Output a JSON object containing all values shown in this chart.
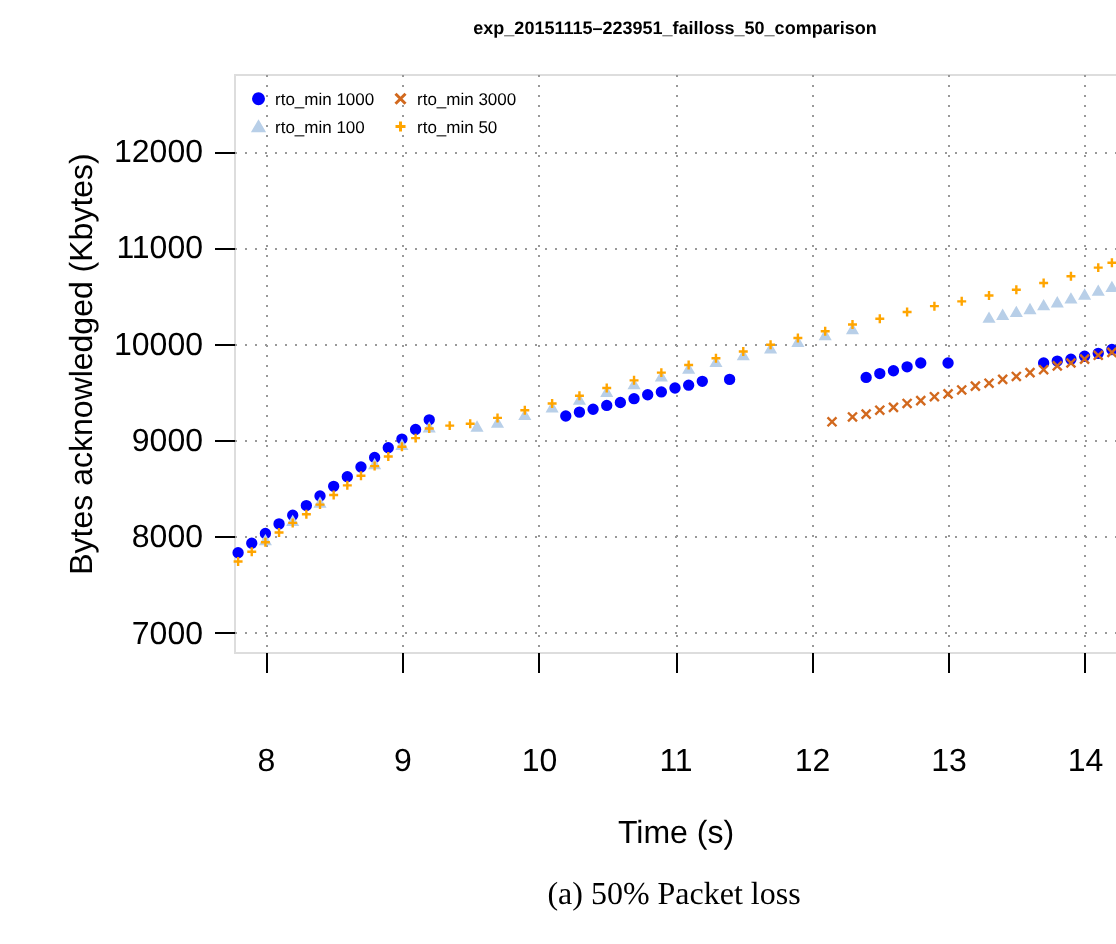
{
  "chart_data": {
    "type": "scatter",
    "title": "exp_20151115–223951_failloss_50_comparison",
    "xlabel": "Time (s)",
    "ylabel": "Bytes acknowledged (Kbytes)",
    "annotations": [
      "(a) 50% Packet loss"
    ],
    "xlim": [
      7.77,
      14.23
    ],
    "ylim": [
      6800,
      12800
    ],
    "xticks": [
      8,
      9,
      10,
      11,
      12,
      13,
      14
    ],
    "yticks": [
      7000,
      8000,
      9000,
      10000,
      11000,
      12000
    ],
    "grid": true,
    "legend": "top left",
    "series": [
      {
        "name": "rto_min 1000",
        "color": "#0000ff",
        "marker": "circle",
        "x": [
          7.8,
          7.9,
          8.0,
          8.1,
          8.2,
          8.3,
          8.4,
          8.5,
          8.6,
          8.7,
          8.8,
          8.9,
          9.0,
          9.1,
          9.2,
          10.2,
          10.3,
          10.4,
          10.5,
          10.6,
          10.7,
          10.8,
          10.9,
          11.0,
          11.1,
          11.2,
          11.4,
          12.4,
          12.5,
          12.6,
          12.7,
          12.8,
          13.0,
          13.7,
          13.8,
          13.9,
          14.0,
          14.1,
          14.2
        ],
        "values": [
          7830,
          7930,
          8030,
          8130,
          8220,
          8320,
          8420,
          8520,
          8620,
          8720,
          8820,
          8920,
          9010,
          9110,
          9210,
          9250,
          9290,
          9320,
          9360,
          9390,
          9430,
          9470,
          9500,
          9540,
          9570,
          9610,
          9630,
          9650,
          9690,
          9720,
          9760,
          9800,
          9800,
          9800,
          9820,
          9840,
          9870,
          9900,
          9940
        ]
      },
      {
        "name": "rto_min 3000",
        "color": "#d2691e",
        "marker": "x",
        "x": [
          12.15,
          12.3,
          12.4,
          12.5,
          12.6,
          12.7,
          12.8,
          12.9,
          13.0,
          13.1,
          13.2,
          13.3,
          13.4,
          13.5,
          13.6,
          13.7,
          13.8,
          13.9,
          14.0,
          14.1,
          14.2
        ],
        "values": [
          9190,
          9240,
          9270,
          9310,
          9340,
          9380,
          9410,
          9450,
          9480,
          9520,
          9560,
          9590,
          9630,
          9660,
          9700,
          9730,
          9770,
          9800,
          9840,
          9880,
          9910
        ]
      },
      {
        "name": "rto_min 100",
        "color": "#b8cfe8",
        "marker": "triangle",
        "x": [
          8.0,
          8.2,
          8.4,
          8.6,
          8.8,
          9.0,
          9.2,
          9.55,
          9.7,
          9.9,
          10.1,
          10.3,
          10.5,
          10.7,
          10.9,
          11.1,
          11.3,
          11.5,
          11.7,
          11.9,
          12.1,
          12.3,
          13.3,
          13.4,
          13.5,
          13.6,
          13.7,
          13.8,
          13.9,
          14.0,
          14.1,
          14.2
        ],
        "values": [
          7960,
          8160,
          8350,
          null,
          8750,
          8950,
          9130,
          9140,
          9180,
          9260,
          9340,
          9420,
          9500,
          9580,
          9660,
          9740,
          9810,
          9880,
          9950,
          10020,
          10090,
          10150,
          10270,
          10300,
          10330,
          10360,
          10400,
          10430,
          10470,
          10510,
          10550,
          10590
        ]
      },
      {
        "name": "rto_min 50",
        "color": "#ffa500",
        "marker": "cross",
        "x": [
          7.8,
          7.9,
          8.0,
          8.1,
          8.2,
          8.3,
          8.4,
          8.5,
          8.6,
          8.7,
          8.8,
          8.9,
          9.0,
          9.1,
          9.2,
          9.35,
          9.5,
          9.7,
          9.9,
          10.1,
          10.3,
          10.5,
          10.7,
          10.9,
          11.1,
          11.3,
          11.5,
          11.7,
          11.9,
          12.1,
          12.3,
          12.5,
          12.7,
          12.9,
          13.1,
          13.3,
          13.5,
          13.7,
          13.9,
          14.1,
          14.2
        ],
        "values": [
          7740,
          7840,
          7940,
          8040,
          8140,
          8230,
          8330,
          8430,
          8530,
          8630,
          8730,
          8830,
          8930,
          9020,
          9120,
          9150,
          9170,
          9230,
          9310,
          9380,
          9460,
          9540,
          9620,
          9700,
          9780,
          9850,
          9920,
          9990,
          10060,
          10130,
          10200,
          10260,
          10330,
          10390,
          10440,
          10500,
          10560,
          10630,
          10700,
          10790,
          10840
        ]
      }
    ]
  }
}
